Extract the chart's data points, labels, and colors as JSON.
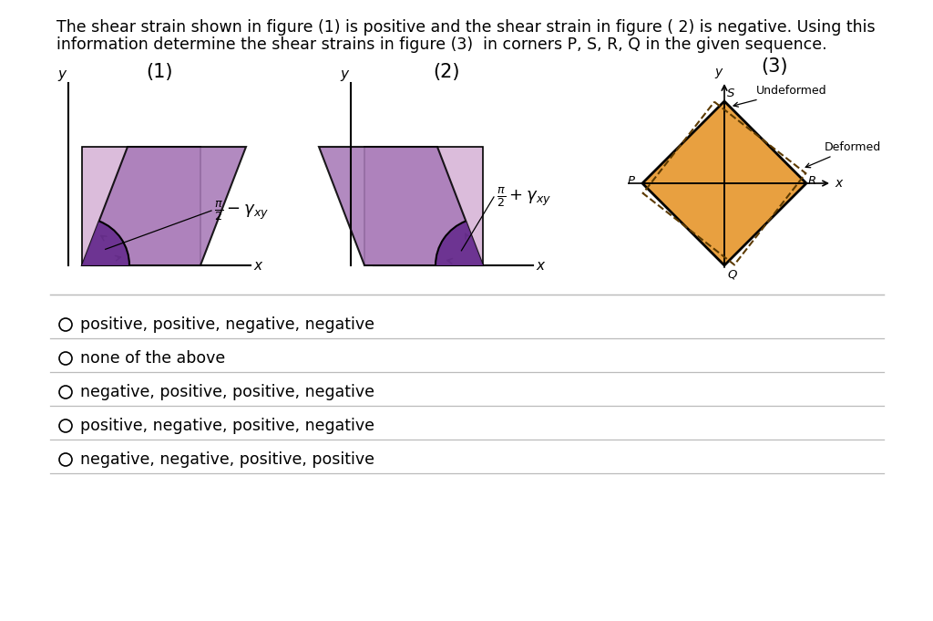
{
  "bg_color": "#ffffff",
  "title_line1": "The shear strain shown in figure (1) is positive and the shear strain in figure ( 2) is negative. Using this",
  "title_line2": "information determine the shear strains in figure (3)  in corners P, S, R, Q in the given sequence.",
  "options": [
    "positive, positive, negative, negative",
    "none of the above",
    "negative, positive, positive, negative",
    "positive, negative, positive, negative",
    "negative, negative, positive, positive"
  ],
  "fig1_label": "(1)",
  "fig2_label": "(2)",
  "fig3_label": "(3)",
  "light_purple": "#dbbcdb",
  "mid_purple": "#a87ab8",
  "dark_purple": "#6a3090",
  "orange_fill": "#e8a040",
  "dashed_color": "#8B6010"
}
